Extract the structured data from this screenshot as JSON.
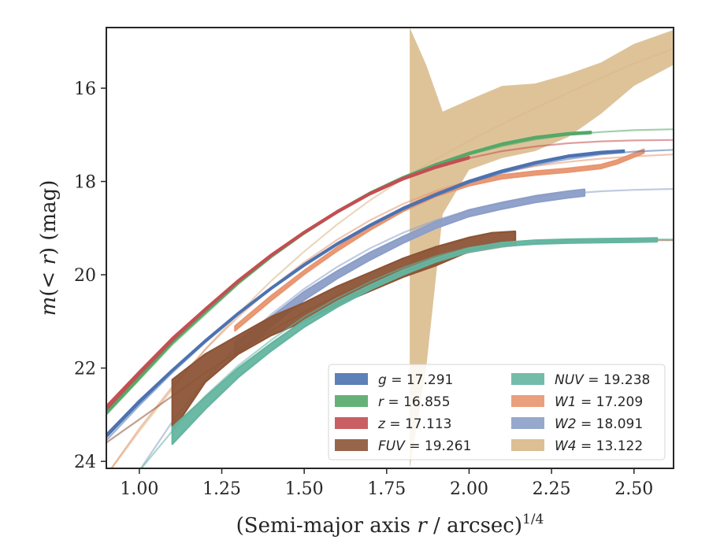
{
  "chart_data": {
    "type": "line",
    "xlabel": "(Semi-major axis r / arcsec)^1/4",
    "xlabel_parts": [
      "(Semi-major axis ",
      "r",
      " / arcsec)",
      "1/4"
    ],
    "ylabel": "m(< r) (mag)",
    "ylabel_parts": [
      "m",
      "(< ",
      "r",
      ") (mag)"
    ],
    "xlim": [
      0.9,
      2.62
    ],
    "ylim": [
      24.15,
      14.7
    ],
    "y_inverted": true,
    "x_ticks": [
      1.0,
      1.25,
      1.5,
      1.75,
      2.0,
      2.25,
      2.5
    ],
    "x_tick_labels": [
      "1.00",
      "1.25",
      "1.50",
      "1.75",
      "2.00",
      "2.25",
      "2.50"
    ],
    "y_ticks": [
      16,
      18,
      20,
      22,
      24
    ],
    "y_tick_labels": [
      "16",
      "18",
      "20",
      "22",
      "24"
    ],
    "grid": false,
    "legend_position": "lower-right",
    "legend_columns": 2,
    "series": [
      {
        "name": "g = 17.291",
        "label_var": "g",
        "label_val": "= 17.291",
        "color": "#4c72b0",
        "model_x": [
          0.9,
          1.0,
          1.1,
          1.2,
          1.3,
          1.4,
          1.5,
          1.6,
          1.7,
          1.8,
          1.9,
          2.0,
          2.1,
          2.2,
          2.3,
          2.4,
          2.5,
          2.62
        ],
        "model_y": [
          23.55,
          22.8,
          22.1,
          21.45,
          20.85,
          20.3,
          19.8,
          19.35,
          18.95,
          18.6,
          18.3,
          18.03,
          17.82,
          17.65,
          17.52,
          17.42,
          17.36,
          17.32
        ],
        "data_x": [
          0.9,
          1.0,
          1.1,
          1.2,
          1.3,
          1.4,
          1.5,
          1.6,
          1.7,
          1.8,
          1.9,
          2.0,
          2.1,
          2.2,
          2.3,
          2.4,
          2.47
        ],
        "data_y": [
          23.45,
          22.72,
          22.05,
          21.42,
          20.83,
          20.29,
          19.79,
          19.34,
          18.94,
          18.58,
          18.28,
          18.0,
          17.78,
          17.6,
          17.46,
          17.38,
          17.35
        ],
        "data_err": [
          0.03,
          0.03,
          0.02,
          0.02,
          0.02,
          0.02,
          0.02,
          0.02,
          0.02,
          0.02,
          0.02,
          0.02,
          0.02,
          0.02,
          0.02,
          0.02,
          0.02
        ]
      },
      {
        "name": "r = 16.855",
        "label_var": "r",
        "label_val": "= 16.855",
        "color": "#55a868",
        "model_x": [
          0.9,
          1.0,
          1.1,
          1.2,
          1.3,
          1.4,
          1.5,
          1.6,
          1.7,
          1.8,
          1.9,
          2.0,
          2.1,
          2.2,
          2.3,
          2.4,
          2.5,
          2.62
        ],
        "model_y": [
          23.0,
          22.25,
          21.5,
          20.85,
          20.2,
          19.63,
          19.12,
          18.67,
          18.27,
          17.93,
          17.65,
          17.42,
          17.24,
          17.1,
          17.0,
          16.94,
          16.9,
          16.88
        ],
        "data_x": [
          0.9,
          1.0,
          1.1,
          1.2,
          1.3,
          1.4,
          1.5,
          1.6,
          1.7,
          1.8,
          1.9,
          2.0,
          2.1,
          2.2,
          2.3,
          2.37
        ],
        "data_y": [
          22.95,
          22.2,
          21.45,
          20.8,
          20.17,
          19.6,
          19.1,
          18.65,
          18.25,
          17.92,
          17.64,
          17.4,
          17.2,
          17.06,
          16.98,
          16.95
        ],
        "data_err": [
          0.03,
          0.03,
          0.02,
          0.02,
          0.02,
          0.02,
          0.02,
          0.02,
          0.02,
          0.02,
          0.02,
          0.02,
          0.02,
          0.02,
          0.02,
          0.02
        ]
      },
      {
        "name": "z = 17.113",
        "label_var": "z",
        "label_val": "= 17.113",
        "color": "#c44e52",
        "model_x": [
          0.9,
          1.0,
          1.1,
          1.2,
          1.3,
          1.4,
          1.5,
          1.6,
          1.7,
          1.8,
          1.9,
          2.0,
          2.1,
          2.2,
          2.3,
          2.4,
          2.5,
          2.62
        ],
        "model_y": [
          22.9,
          22.15,
          21.42,
          20.77,
          20.15,
          19.6,
          19.1,
          18.66,
          18.27,
          17.95,
          17.7,
          17.5,
          17.35,
          17.25,
          17.18,
          17.14,
          17.12,
          17.11
        ],
        "data_x": [
          0.9,
          1.0,
          1.1,
          1.2,
          1.3,
          1.4,
          1.5,
          1.6,
          1.7,
          1.8,
          1.9,
          2.0
        ],
        "data_y": [
          22.85,
          22.1,
          21.38,
          20.74,
          20.13,
          19.58,
          19.09,
          18.65,
          18.26,
          17.94,
          17.69,
          17.49
        ],
        "data_err": [
          0.04,
          0.03,
          0.03,
          0.02,
          0.02,
          0.02,
          0.02,
          0.02,
          0.02,
          0.02,
          0.02,
          0.02
        ]
      },
      {
        "name": "FUV = 19.261",
        "label_var": "FUV",
        "label_val": "= 19.261",
        "color": "#8c5436",
        "model_x": [
          0.9,
          1.0,
          1.1,
          1.2,
          1.3,
          1.4,
          1.5,
          1.6,
          1.7,
          1.8,
          1.9,
          2.0,
          2.1,
          2.2,
          2.3,
          2.4,
          2.5,
          2.62
        ],
        "model_y": [
          23.6,
          23.1,
          22.6,
          22.1,
          21.65,
          21.2,
          20.8,
          20.45,
          20.15,
          19.9,
          19.7,
          19.52,
          19.4,
          19.32,
          19.28,
          19.27,
          19.26,
          19.26
        ],
        "data_x": [
          1.1,
          1.2,
          1.3,
          1.4,
          1.5,
          1.6,
          1.7,
          1.8,
          1.9,
          2.0,
          2.07,
          2.14
        ],
        "data_y": [
          22.8,
          22.0,
          21.5,
          21.1,
          20.8,
          20.45,
          20.15,
          19.85,
          19.6,
          19.35,
          19.25,
          19.22
        ],
        "data_err": [
          0.55,
          0.3,
          0.2,
          0.2,
          0.2,
          0.2,
          0.2,
          0.2,
          0.2,
          0.15,
          0.15,
          0.15
        ]
      },
      {
        "name": "NUV = 19.238",
        "label_var": "NUV",
        "label_val": "= 19.238",
        "color": "#64b5a0",
        "model_x": [
          0.9,
          1.0,
          1.1,
          1.2,
          1.3,
          1.4,
          1.5,
          1.6,
          1.7,
          1.8,
          1.9,
          2.0,
          2.1,
          2.2,
          2.3,
          2.4,
          2.5,
          2.62
        ],
        "model_y": [
          25.2,
          24.2,
          23.35,
          22.6,
          21.95,
          21.4,
          20.9,
          20.5,
          20.15,
          19.85,
          19.6,
          19.42,
          19.32,
          19.27,
          19.25,
          19.24,
          19.24,
          19.24
        ],
        "data_x": [
          1.1,
          1.2,
          1.3,
          1.4,
          1.5,
          1.6,
          1.7,
          1.8,
          1.9,
          2.0,
          2.1,
          2.2,
          2.3,
          2.4,
          2.5,
          2.57
        ],
        "data_y": [
          23.45,
          22.75,
          22.1,
          21.55,
          21.05,
          20.63,
          20.27,
          19.95,
          19.68,
          19.47,
          19.35,
          19.3,
          19.28,
          19.27,
          19.26,
          19.25
        ],
        "data_err": [
          0.18,
          0.13,
          0.1,
          0.08,
          0.07,
          0.06,
          0.05,
          0.05,
          0.04,
          0.04,
          0.04,
          0.04,
          0.04,
          0.04,
          0.04,
          0.04
        ]
      },
      {
        "name": "W1 = 17.209",
        "label_var": "W1",
        "label_val": "= 17.209",
        "color": "#e8956f",
        "model_x": [
          0.9,
          1.0,
          1.1,
          1.2,
          1.3,
          1.4,
          1.5,
          1.6,
          1.7,
          1.8,
          1.9,
          2.0,
          2.1,
          2.2,
          2.3,
          2.4,
          2.5,
          2.62
        ],
        "model_y": [
          24.3,
          23.3,
          22.4,
          21.6,
          20.9,
          20.28,
          19.73,
          19.25,
          18.83,
          18.48,
          18.2,
          17.98,
          17.8,
          17.67,
          17.58,
          17.51,
          17.46,
          17.42
        ],
        "data_x": [
          1.29,
          1.4,
          1.5,
          1.6,
          1.7,
          1.8,
          1.9,
          2.0,
          2.1,
          2.2,
          2.3,
          2.4,
          2.45,
          2.53
        ],
        "data_y": [
          21.15,
          20.5,
          19.95,
          19.45,
          19.0,
          18.6,
          18.28,
          18.05,
          17.9,
          17.82,
          17.76,
          17.68,
          17.58,
          17.35
        ],
        "data_err": [
          0.05,
          0.05,
          0.04,
          0.04,
          0.04,
          0.04,
          0.04,
          0.04,
          0.04,
          0.04,
          0.04,
          0.04,
          0.04,
          0.04
        ]
      },
      {
        "name": "W2 = 18.091",
        "label_var": "W2",
        "label_val": "= 18.091",
        "color": "#8c9ec8",
        "model_x": [
          0.9,
          1.0,
          1.1,
          1.2,
          1.3,
          1.4,
          1.5,
          1.6,
          1.7,
          1.8,
          1.9,
          2.0,
          2.1,
          2.2,
          2.3,
          2.4,
          2.5,
          2.62
        ],
        "model_y": [
          25.4,
          24.2,
          23.15,
          22.25,
          21.5,
          20.85,
          20.3,
          19.83,
          19.43,
          19.1,
          18.83,
          18.62,
          18.46,
          18.34,
          18.26,
          18.21,
          18.18,
          18.16
        ],
        "data_x": [
          1.29,
          1.4,
          1.5,
          1.6,
          1.7,
          1.8,
          1.9,
          2.0,
          2.1,
          2.2,
          2.3,
          2.35
        ],
        "data_y": [
          21.6,
          21.0,
          20.45,
          20.0,
          19.6,
          19.25,
          18.93,
          18.68,
          18.52,
          18.38,
          18.28,
          18.24
        ],
        "data_err": [
          0.15,
          0.1,
          0.09,
          0.08,
          0.08,
          0.07,
          0.07,
          0.07,
          0.07,
          0.07,
          0.07,
          0.07
        ]
      },
      {
        "name": "W4 = 13.122",
        "label_var": "W4",
        "label_val": "= 13.122",
        "color": "#d8b887",
        "model_x": [
          0.9,
          1.0,
          1.1,
          1.2,
          1.3,
          1.4,
          1.5,
          1.6,
          1.7,
          1.8,
          1.9,
          2.0,
          2.1,
          2.2,
          2.3,
          2.4,
          2.5,
          2.62
        ],
        "model_y": [
          24.3,
          23.35,
          22.45,
          21.6,
          20.83,
          20.13,
          19.5,
          18.92,
          18.4,
          17.94,
          17.52,
          17.13,
          16.77,
          16.43,
          16.1,
          15.78,
          15.47,
          15.15
        ],
        "data_x": [
          1.82,
          1.87,
          1.92,
          2.0,
          2.1,
          2.2,
          2.3,
          2.4,
          2.5,
          2.62
        ],
        "data_y_upper": [
          24.15,
          22.0,
          18.7,
          17.75,
          17.5,
          17.35,
          17.05,
          16.55,
          15.95,
          15.5
        ],
        "data_y_lower": [
          14.7,
          15.5,
          16.5,
          16.25,
          15.95,
          15.9,
          15.7,
          15.45,
          15.05,
          14.75
        ]
      }
    ]
  }
}
